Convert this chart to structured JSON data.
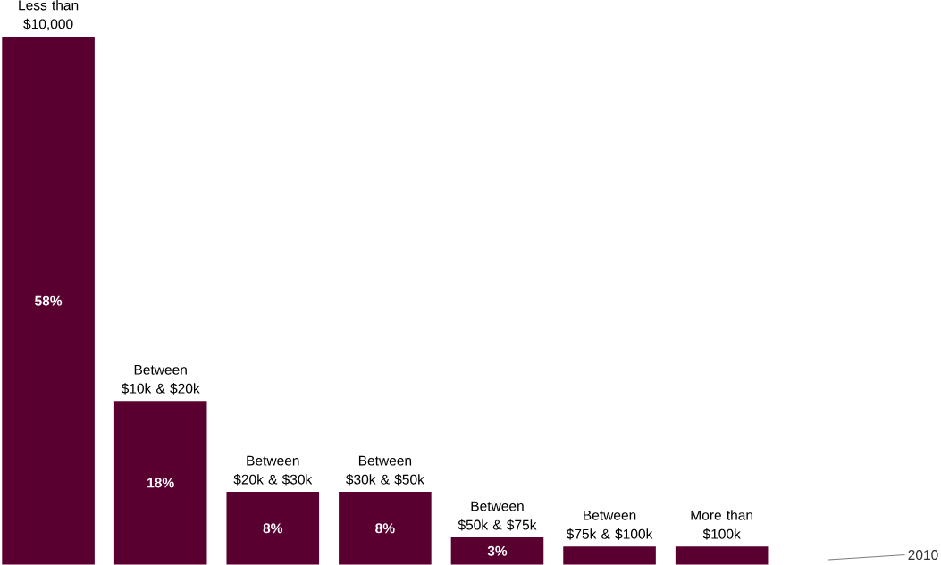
{
  "chart_data": {
    "type": "bar",
    "categories": [
      "Less than $10,000",
      "Between $10k & $20k",
      "Between $20k & $30k",
      "Between $30k & $50k",
      "Between $50k & $75k",
      "Between $75k & $100k",
      "More than $100k"
    ],
    "values": [
      58,
      18,
      8,
      8,
      3,
      2,
      2
    ],
    "value_labels": [
      "58%",
      "18%",
      "8%",
      "8%",
      "3%",
      null,
      null
    ],
    "color": "#5a0030",
    "annotations": [
      "2010"
    ]
  }
}
